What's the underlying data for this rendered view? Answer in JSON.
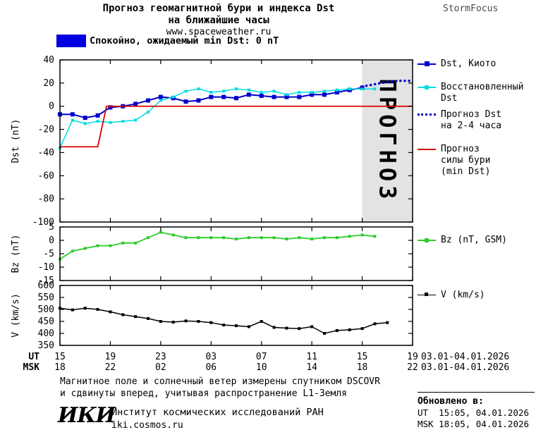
{
  "header": {
    "title_line1": "Прогноз геомагнитной бури и индекса Dst",
    "title_line2": "на ближайшие часы",
    "website": "www.spaceweather.ru",
    "brand": "StormFocus"
  },
  "status_banner": {
    "color": "#0000e0",
    "label": "Спокойно, ожидаемый min Dst: 0 nT"
  },
  "colors": {
    "band_fill": "#e3e3e3",
    "band_text": "#c6c6c6",
    "frame": "#000000"
  },
  "legend": {
    "dst_kyoto": [
      "Dst, Киото"
    ],
    "restored": [
      "Восстановленный",
      "Dst"
    ],
    "forecast_dst": [
      "Прогноз Dst",
      "на 2-4 часа"
    ],
    "forecast_storm": [
      "Прогноз",
      "силы бури",
      "(min Dst)"
    ],
    "bz": [
      "Bz (nT, GSM)"
    ],
    "v": [
      "V (km/s)"
    ]
  },
  "xaxis": {
    "ut_label": "UT",
    "msk_label": "MSK",
    "tick_positions": [
      15,
      19,
      23,
      27,
      31,
      35,
      39,
      43
    ],
    "ut_ticks": [
      "15",
      "19",
      "23",
      "03",
      "07",
      "11",
      "15",
      "19"
    ],
    "msk_ticks": [
      "18",
      "22",
      "02",
      "06",
      "10",
      "14",
      "18",
      "22"
    ],
    "ut_range": "03.01-04.01.2026",
    "msk_range": "03.01-04.01.2026"
  },
  "footer": {
    "note_line1": "Магнитное поле и солнечный ветер измерены спутником DSCOVR",
    "note_line2": "и сдвинуты вперед, учитывая распространение L1-Земля",
    "updated_label": "Обновлено в:",
    "updated_ut": "UT  15:05, 04.01.2026",
    "updated_msk": "MSK 18:05, 04.01.2026",
    "logo": "ИКИ",
    "institute": "Институт космических исследований РАН",
    "site": "iki.cosmos.ru"
  },
  "chart_data": [
    {
      "type": "line",
      "ylabel": "Dst (nT)",
      "ylim": [
        -100,
        40
      ],
      "yticks": [
        40,
        20,
        0,
        -20,
        -40,
        -60,
        -80,
        -100
      ],
      "xlim": [
        15,
        43
      ],
      "x_units": "hours UT from 03.01 00:00 (values > 24 are 04.01)",
      "forecast_band": {
        "x": [
          39,
          43
        ],
        "label": "ПРОГНОЗ"
      },
      "series": [
        {
          "name": "Dst, Киото",
          "color": "#0000cd",
          "width": 2,
          "marker": "square",
          "msize": 6,
          "x": [
            15,
            16,
            17,
            18,
            19,
            20,
            21,
            22,
            23,
            24,
            25,
            26,
            27,
            28,
            29,
            30,
            31,
            32,
            33,
            34,
            35,
            36,
            37,
            38,
            39
          ],
          "y": [
            -7,
            -7,
            -10,
            -8,
            -1,
            0,
            2,
            5,
            8,
            7,
            4,
            5,
            8,
            8,
            7,
            10,
            9,
            8,
            8,
            8,
            10,
            10,
            12,
            14,
            16
          ]
        },
        {
          "name": "Восстановленный Dst",
          "color": "#00dde0",
          "width": 1.5,
          "marker": "square",
          "msize": 4,
          "x": [
            15,
            16,
            17,
            18,
            19,
            20,
            21,
            22,
            23,
            24,
            25,
            26,
            27,
            28,
            29,
            30,
            31,
            32,
            33,
            34,
            35,
            36,
            37,
            38,
            39,
            40
          ],
          "y": [
            -36,
            -12,
            -15,
            -13,
            -14,
            -13,
            -12,
            -5,
            5,
            8,
            13,
            15,
            12,
            13,
            15,
            14,
            12,
            13,
            10,
            12,
            12,
            13,
            14,
            15,
            15,
            15
          ]
        },
        {
          "name": "Прогноз Dst на 2-4 часа",
          "color": "#0000cd",
          "width": 3,
          "style": "dotted",
          "x": [
            39,
            40,
            41,
            42,
            43
          ],
          "y": [
            17,
            19,
            21,
            22,
            22
          ]
        },
        {
          "name": "Прогноз силы бури (min Dst)",
          "color": "#dd0000",
          "width": 1.8,
          "x": [
            15,
            18,
            18.7,
            43
          ],
          "y": [
            -35,
            -35,
            0,
            0
          ]
        }
      ]
    },
    {
      "type": "line",
      "ylabel": "Bz (nT)",
      "ylim": [
        -15,
        5
      ],
      "yticks": [
        5,
        0,
        -5,
        -10,
        -15
      ],
      "xlim": [
        15,
        43
      ],
      "series": [
        {
          "name": "Bz (nT, GSM)",
          "color": "#2ecc2e",
          "width": 1.8,
          "marker": "square",
          "msize": 4,
          "x": [
            15,
            16,
            17,
            18,
            19,
            20,
            21,
            22,
            23,
            24,
            25,
            26,
            27,
            28,
            29,
            30,
            31,
            32,
            33,
            34,
            35,
            36,
            37,
            38,
            39,
            40
          ],
          "y": [
            -7,
            -4,
            -3,
            -2,
            -2,
            -1,
            -1,
            1,
            3,
            2,
            1,
            1,
            1,
            1,
            0.5,
            1,
            1,
            1,
            0.5,
            1,
            0.5,
            1,
            1,
            1.5,
            2,
            1.5
          ]
        }
      ]
    },
    {
      "type": "line",
      "ylabel": "V (km/s)",
      "ylim": [
        350,
        600
      ],
      "yticks": [
        600,
        550,
        500,
        450,
        400,
        350
      ],
      "xlim": [
        15,
        43
      ],
      "series": [
        {
          "name": "V (km/s)",
          "color": "#000000",
          "width": 1.5,
          "marker": "square",
          "msize": 4,
          "x": [
            15,
            16,
            17,
            18,
            19,
            20,
            21,
            22,
            23,
            24,
            25,
            26,
            27,
            28,
            29,
            30,
            31,
            32,
            33,
            34,
            35,
            36,
            37,
            38,
            39,
            40,
            41
          ],
          "y": [
            505,
            498,
            505,
            500,
            490,
            478,
            470,
            462,
            450,
            447,
            452,
            450,
            445,
            435,
            432,
            428,
            450,
            425,
            422,
            420,
            428,
            400,
            412,
            415,
            420,
            440,
            445
          ]
        }
      ]
    }
  ]
}
